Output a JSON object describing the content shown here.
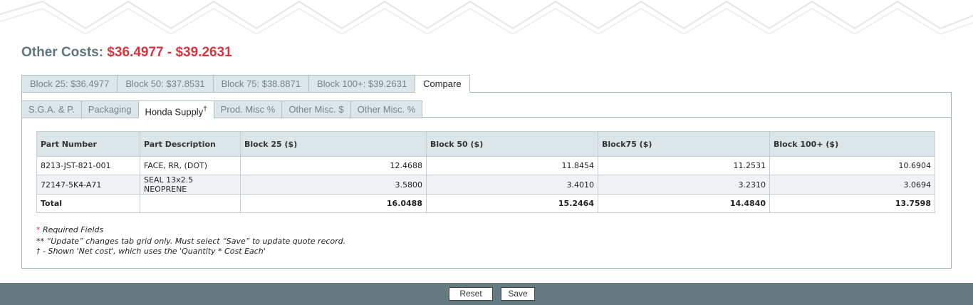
{
  "header": {
    "label": "Other Costs:",
    "range": "$36.4977 - $39.2631"
  },
  "tabs": [
    "Block 25: $36.4977",
    "Block 50: $37.8531",
    "Block 75: $38.8871",
    "Block 100+: $39.2631",
    "Compare"
  ],
  "subtabs": [
    {
      "label": "S.G.A. & P."
    },
    {
      "label": "Packaging"
    },
    {
      "label": "Honda Supply",
      "sup": "†"
    },
    {
      "label": "Prod. Misc %"
    },
    {
      "label": "Other Misc. $"
    },
    {
      "label": "Other Misc. %"
    }
  ],
  "table": {
    "columns": [
      "Part Number",
      "Part Description",
      "Block 25 ($)",
      "Block 50 ($)",
      "Block75 ($)",
      "Block 100+ ($)"
    ],
    "rows": [
      [
        "8213-JST-821-001",
        "FACE, RR, (DOT)",
        "12.4688",
        "11.8454",
        "11.2531",
        "10.6904"
      ],
      [
        "72147-5K4-A71",
        "SEAL 13x2.5 NEOPRENE",
        "3.5800",
        "3.4010",
        "3.2310",
        "3.0694"
      ],
      [
        "Total",
        "",
        "16.0488",
        "15.2464",
        "14.4840",
        "13.7598"
      ]
    ]
  },
  "notes": {
    "required_marker": "*",
    "required": "Required Fields",
    "update": "** “Update” changes tab grid only. Must select “Save” to update quote record.",
    "dagger": "† - Shown 'Net cost', which uses the 'Quantity * Cost Each'"
  },
  "buttons": [
    "Reset",
    "Save"
  ]
}
